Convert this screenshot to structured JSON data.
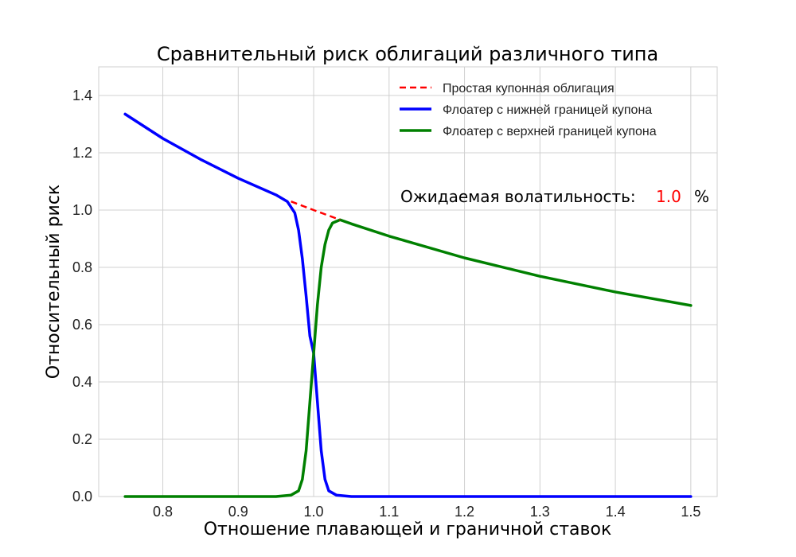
{
  "chart_data": {
    "type": "line",
    "title": "Сравнительный риск облигаций различного типа",
    "xlabel": "Отношение плавающей и граничной ставок",
    "ylabel": "Относительный риск",
    "xlim": [
      0.715,
      1.535
    ],
    "ylim": [
      0.0,
      1.5
    ],
    "grid": true,
    "legend_position": "top-right",
    "x_ticks": [
      "0.8",
      "0.9",
      "1.0",
      "1.1",
      "1.2",
      "1.3",
      "1.4",
      "1.5"
    ],
    "x_tick_values": [
      0.8,
      0.9,
      1.0,
      1.1,
      1.2,
      1.3,
      1.4,
      1.5
    ],
    "y_ticks": [
      "0.0",
      "0.2",
      "0.4",
      "0.6",
      "0.8",
      "1.0",
      "1.2",
      "1.4"
    ],
    "y_tick_values": [
      0.0,
      0.2,
      0.4,
      0.6,
      0.8,
      1.0,
      1.2,
      1.4
    ],
    "series": [
      {
        "name": "Простая купонная облигация",
        "color": "#ff0000",
        "style": "dashed",
        "x": [
          0.97,
          1.0,
          1.035
        ],
        "y": [
          1.03,
          1.0,
          0.966
        ]
      },
      {
        "name": "Флоатер с нижней границей купона",
        "color": "#0000ff",
        "style": "solid",
        "x": [
          0.75,
          0.8,
          0.85,
          0.9,
          0.95,
          0.965,
          0.975,
          0.98,
          0.985,
          0.99,
          0.995,
          1.0,
          1.005,
          1.01,
          1.015,
          1.02,
          1.03,
          1.05,
          1.1,
          1.2,
          1.3,
          1.4,
          1.5
        ],
        "y": [
          1.335,
          1.25,
          1.177,
          1.111,
          1.053,
          1.03,
          0.99,
          0.93,
          0.83,
          0.7,
          0.56,
          0.5,
          0.33,
          0.16,
          0.06,
          0.02,
          0.005,
          0.0,
          0.0,
          0.0,
          0.0,
          0.0,
          0.0
        ]
      },
      {
        "name": "Флоатер с верхней границей купона",
        "color": "#008000",
        "style": "solid",
        "x": [
          0.75,
          0.9,
          0.95,
          0.97,
          0.98,
          0.985,
          0.99,
          0.995,
          1.0,
          1.005,
          1.01,
          1.015,
          1.02,
          1.025,
          1.035,
          1.05,
          1.1,
          1.2,
          1.3,
          1.4,
          1.5
        ],
        "y": [
          0.0,
          0.0,
          0.0,
          0.005,
          0.02,
          0.06,
          0.16,
          0.33,
          0.5,
          0.67,
          0.8,
          0.88,
          0.93,
          0.955,
          0.966,
          0.952,
          0.909,
          0.833,
          0.769,
          0.714,
          0.667
        ]
      }
    ],
    "annotation": {
      "label": "Ожидаемая волатильность:",
      "value": "1.0",
      "unit": "%",
      "value_color": "#ff0000"
    }
  }
}
